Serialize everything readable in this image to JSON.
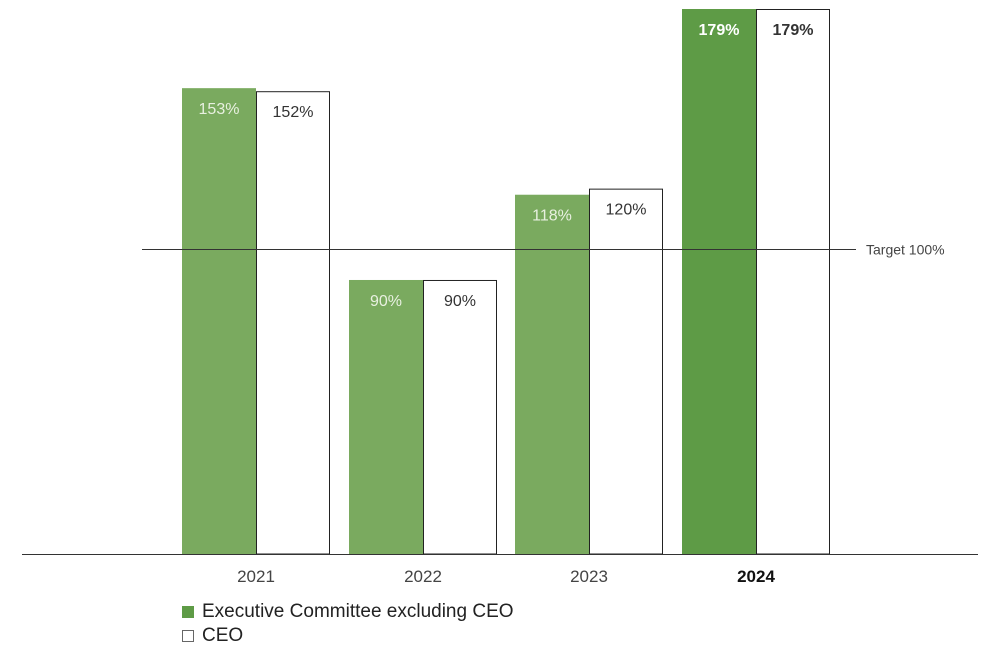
{
  "chart_data": {
    "type": "bar",
    "title": "",
    "xlabel": "",
    "ylabel": "",
    "categories": [
      "2021",
      "2022",
      "2023",
      "2024"
    ],
    "highlight_category": "2024",
    "series": [
      {
        "name": "Executive Committee excluding CEO",
        "values": [
          153,
          90,
          118,
          179
        ],
        "labels": [
          "153%",
          "90%",
          "118%",
          "179%"
        ]
      },
      {
        "name": "CEO",
        "values": [
          152,
          90,
          120,
          179
        ],
        "labels": [
          "152%",
          "90%",
          "120%",
          "179%"
        ]
      }
    ],
    "reference_line": {
      "value": 100,
      "label": "Target 100%"
    },
    "ylim": [
      0,
      179
    ],
    "grid": false,
    "legend_position": "bottom-left"
  },
  "colors": {
    "exec_bar": "#7aaa5f",
    "exec_bar_highlight": "#5e9b46",
    "ceo_bar_fill": "#ffffff",
    "ceo_bar_stroke": "#222222",
    "axis": "#333333"
  }
}
